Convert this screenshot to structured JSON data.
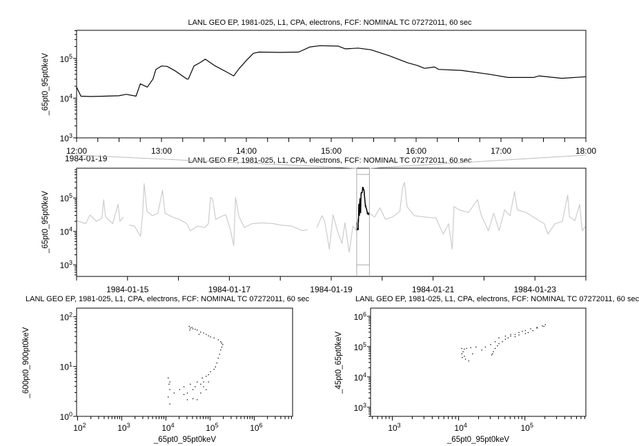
{
  "chart_data": [
    {
      "type": "line",
      "title": "LANL GEO EP, 1981-025, L1, CPA, electrons, FCF: NOMINAL TC 07272011, 60 sec",
      "ylabel": "_65pt0_95pt0keV",
      "xlabel": "",
      "date_label": "1984-01-19",
      "x_scale": "time",
      "y_scale": "log",
      "xlim": [
        "1984-01-19 12:00",
        "1984-01-19 18:00"
      ],
      "ylim": [
        1000,
        510000
      ],
      "x_tick_labels": [
        "12:00",
        "13:00",
        "14:00",
        "15:00",
        "16:00",
        "17:00",
        "18:00"
      ],
      "y_tick_labels": [
        "3",
        "4",
        "5"
      ],
      "series": [
        {
          "color": "#000000",
          "points": [
            [
              "1984-01-19 12:00",
              19000
            ],
            [
              "1984-01-19 12:03",
              11200
            ],
            [
              "1984-01-19 12:10",
              11000
            ],
            [
              "1984-01-19 12:20",
              11200
            ],
            [
              "1984-01-19 12:30",
              11500
            ],
            [
              "1984-01-19 12:35",
              12500
            ],
            [
              "1984-01-19 12:42",
              11200
            ],
            [
              "1984-01-19 12:45",
              22900
            ],
            [
              "1984-01-19 12:50",
              19000
            ],
            [
              "1984-01-19 12:54",
              30200
            ],
            [
              "1984-01-19 12:56",
              52500
            ],
            [
              "1984-01-19 13:00",
              64600
            ],
            [
              "1984-01-19 13:04",
              63000
            ],
            [
              "1984-01-19 13:10",
              47900
            ],
            [
              "1984-01-19 13:18",
              30200
            ],
            [
              "1984-01-19 13:19",
              30200
            ],
            [
              "1984-01-19 13:23",
              64600
            ],
            [
              "1984-01-19 13:27",
              77600
            ],
            [
              "1984-01-19 13:31",
              95500
            ],
            [
              "1984-01-19 13:38",
              64600
            ],
            [
              "1984-01-19 13:46",
              45700
            ],
            [
              "1984-01-19 13:51",
              36300
            ],
            [
              "1984-01-19 13:55",
              56200
            ],
            [
              "1984-01-19 14:00",
              89100
            ],
            [
              "1984-01-19 14:05",
              135000
            ],
            [
              "1984-01-19 14:09",
              145000
            ],
            [
              "1984-01-19 14:24",
              142000
            ],
            [
              "1984-01-19 14:37",
              145000
            ],
            [
              "1984-01-19 14:45",
              195000
            ],
            [
              "1984-01-19 14:52",
              209000
            ],
            [
              "1984-01-19 15:05",
              204000
            ],
            [
              "1984-01-19 15:10",
              174000
            ],
            [
              "1984-01-19 15:19",
              182000
            ],
            [
              "1984-01-19 15:28",
              165000
            ],
            [
              "1984-01-19 15:41",
              117000
            ],
            [
              "1984-01-19 15:54",
              77600
            ],
            [
              "1984-01-19 16:01",
              66100
            ],
            [
              "1984-01-19 16:06",
              56200
            ],
            [
              "1984-01-19 16:13",
              61000
            ],
            [
              "1984-01-19 16:16",
              53000
            ],
            [
              "1984-01-19 16:32",
              50100
            ],
            [
              "1984-01-19 16:52",
              39800
            ],
            [
              "1984-01-19 17:05",
              33100
            ],
            [
              "1984-01-19 17:23",
              33100
            ],
            [
              "1984-01-19 17:27",
              36300
            ],
            [
              "1984-01-19 17:43",
              31600
            ],
            [
              "1984-01-19 18:00",
              34700
            ]
          ]
        }
      ]
    },
    {
      "type": "line",
      "title": "LANL GEO EP, 1981-025, L1, CPA, electrons, FCF: NOMINAL TC 07272011, 60 sec",
      "ylabel": "_65pt0_95pt0keV",
      "xlabel": "",
      "x_scale": "time",
      "y_scale": "log",
      "xlim": [
        "1984-01-14 00:00",
        "1984-01-24 00:00"
      ],
      "ylim": [
        450,
        780000
      ],
      "x_tick_labels": [
        "1984-01-15",
        "1984-01-17",
        "1984-01-19",
        "1984-01-21",
        "1984-01-23"
      ],
      "highlight": {
        "xlim": [
          "1984-01-19 12:00",
          "1984-01-19 18:00"
        ],
        "ylim": [
          1000,
          510000
        ],
        "color": "#aaaaaa"
      },
      "series": [
        {
          "color": "#cccccc",
          "points": [
            [
              "1984-01-14 00:00",
              21000
            ],
            [
              "1984-01-14 04:15",
              17000
            ],
            [
              "1984-01-14 06:18",
              31000
            ],
            [
              "1984-01-14 09:22",
              20000
            ],
            [
              "1984-01-14 11:55",
              25000
            ],
            [
              "1984-01-14 12:46",
              89000
            ],
            [
              "1984-01-14 13:37",
              27000
            ],
            [
              "1984-01-14 17:01",
              17000
            ],
            [
              "1984-01-14 19:34",
              65000
            ],
            [
              "1984-01-14 20:25",
              20000
            ],
            [
              "1984-01-14 22:07",
              27000
            ],
            null,
            [
              "1984-01-15 00:41",
              15500
            ],
            [
              "1984-01-15 03:14",
              14500
            ],
            [
              "1984-01-15 06:08",
              7100
            ],
            [
              "1984-01-15 07:09",
              37000
            ],
            [
              "1984-01-15 07:50",
              270000
            ],
            [
              "1984-01-15 09:11",
              40000
            ],
            [
              "1984-01-15 11:44",
              29500
            ],
            [
              "1984-01-15 14:17",
              35000
            ],
            [
              "1984-01-15 16:30",
              170000
            ],
            [
              "1984-01-15 17:42",
              35000
            ],
            [
              "1984-01-15 21:06",
              27000
            ],
            [
              "1984-01-16 00:30",
              23000
            ],
            [
              "1984-01-16 03:54",
              17000
            ],
            [
              "1984-01-16 05:36",
              10500
            ],
            [
              "1984-01-16 09:00",
              14500
            ],
            [
              "1984-01-16 12:25",
              13000
            ],
            [
              "1984-01-16 14:07",
              17000
            ],
            [
              "1984-01-16 15:08",
              105000
            ],
            [
              "1984-01-16 16:10",
              89000
            ],
            [
              "1984-01-16 17:31",
              23000
            ],
            [
              "1984-01-16 20:56",
              29500
            ],
            [
              "1984-01-16 22:17",
              31500
            ],
            [
              "1984-01-17 00:20",
              12300
            ],
            [
              "1984-01-17 02:02",
              3700
            ],
            [
              "1984-01-17 02:53",
              105000
            ],
            [
              "1984-01-17 04:35",
              27000
            ],
            [
              "1984-01-17 07:08",
              13000
            ],
            [
              "1984-01-17 10:32",
              17000
            ],
            [
              "1984-01-17 15:39",
              18000
            ],
            [
              "1984-01-17 20:45",
              17000
            ],
            [
              "1984-01-18 00:10",
              15500
            ],
            [
              "1984-01-18 05:16",
              14500
            ],
            [
              "1984-01-18 10:22",
              10500
            ],
            [
              "1984-01-18 12:55",
              11400
            ],
            null,
            [
              "1984-01-18 17:10",
              13000
            ],
            [
              "1984-01-18 19:43",
              29500
            ],
            [
              "1984-01-18 20:55",
              20000
            ],
            [
              "1984-01-18 23:08",
              2950
            ],
            [
              "1984-01-19 00:50",
              31500
            ],
            [
              "1984-01-19 03:23",
              8300
            ],
            [
              "1984-01-19 05:05",
              4400
            ],
            [
              "1984-01-19 06:27",
              18000
            ],
            [
              "1984-01-19 08:30",
              2350
            ],
            [
              "1984-01-19 10:12",
              14500
            ],
            [
              "1984-01-19 12:00",
              10500
            ],
            null,
            [
              "1984-01-19 18:02",
              35000
            ],
            [
              "1984-01-19 20:25",
              27000
            ],
            [
              "1984-01-19 23:00",
              51000
            ],
            [
              "1984-01-20 01:31",
              23000
            ],
            [
              "1984-01-20 04:56",
              27000
            ],
            [
              "1984-01-20 08:20",
              40000
            ],
            [
              "1984-01-20 09:42",
              215000
            ],
            [
              "1984-01-20 10:33",
              295000
            ],
            [
              "1984-01-20 11:44",
              55000
            ],
            [
              "1984-01-20 15:08",
              29500
            ],
            [
              "1984-01-20 20:15",
              27000
            ],
            [
              "1984-01-21 01:21",
              25000
            ],
            [
              "1984-01-21 04:45",
              8300
            ],
            [
              "1984-01-21 07:18",
              17000
            ],
            [
              "1984-01-21 09:00",
              2950
            ],
            [
              "1984-01-21 09:51",
              55000
            ],
            [
              "1984-01-21 12:24",
              44000
            ],
            [
              "1984-01-21 16:40",
              37000
            ],
            [
              "1984-01-21 20:56",
              89000
            ],
            [
              "1984-01-21 22:38",
              31500
            ],
            [
              "1984-01-22 02:02",
              10500
            ],
            [
              "1984-01-22 04:35",
              35000
            ],
            [
              "1984-01-22 07:08",
              10500
            ],
            [
              "1984-01-22 09:41",
              44000
            ],
            [
              "1984-01-22 12:14",
              29500
            ],
            [
              "1984-01-22 14:27",
              156000
            ],
            [
              "1984-01-22 15:38",
              44000
            ],
            [
              "1984-01-22 19:53",
              37000
            ],
            [
              "1984-01-23 01:00",
              23000
            ],
            [
              "1984-01-23 04:24",
              17000
            ],
            [
              "1984-01-23 06:06",
              8300
            ],
            [
              "1984-01-23 09:30",
              17000
            ],
            [
              "1984-01-23 12:55",
              20000
            ],
            [
              "1984-01-23 15:27",
              123000
            ],
            [
              "1984-01-23 16:18",
              27000
            ],
            [
              "1984-01-23 18:52",
              21000
            ],
            [
              "1984-01-23 21:05",
              65000
            ],
            [
              "1984-01-23 22:16",
              10500
            ],
            [
              "1984-01-24 00:00",
              14500
            ]
          ]
        },
        {
          "color": "#000000",
          "same_as": "top_panel_series"
        }
      ]
    },
    {
      "type": "scatter",
      "title": "LANL GEO EP, 1981-025, L1, CPA, electrons, FCF: NOMINAL TC 07272011, 60 sec",
      "xlabel": "_65pt0_95pt0keV",
      "ylabel": "_600pt0_900pt0keV",
      "x_scale": "log",
      "y_scale": "log",
      "xlim": [
        95,
        7400000
      ],
      "ylim": [
        1,
        148
      ],
      "color": "#000000",
      "points": [
        [
          33000,
          65
        ],
        [
          35000,
          60
        ],
        [
          34000,
          55
        ],
        [
          38000,
          62
        ],
        [
          40000,
          58
        ],
        [
          45000,
          57
        ],
        [
          50000,
          55
        ],
        [
          60000,
          50
        ],
        [
          55000,
          45
        ],
        [
          70000,
          48
        ],
        [
          80000,
          45
        ],
        [
          90000,
          42
        ],
        [
          100000,
          40
        ],
        [
          120000,
          38
        ],
        [
          150000,
          35
        ],
        [
          170000,
          32
        ],
        [
          180000,
          30
        ],
        [
          190000,
          28
        ],
        [
          180000,
          25
        ],
        [
          170000,
          22
        ],
        [
          160000,
          18
        ],
        [
          150000,
          15
        ],
        [
          140000,
          12
        ],
        [
          130000,
          10
        ],
        [
          120000,
          9
        ],
        [
          100000,
          8
        ],
        [
          90000,
          7
        ],
        [
          80000,
          6.5
        ],
        [
          70000,
          5
        ],
        [
          60000,
          4.5
        ],
        [
          50000,
          5
        ],
        [
          45000,
          4
        ],
        [
          40000,
          3.5
        ],
        [
          35000,
          4.5
        ],
        [
          30000,
          3
        ],
        [
          25000,
          4
        ],
        [
          20000,
          3.5
        ],
        [
          15000,
          3
        ],
        [
          12000,
          5
        ],
        [
          11000,
          6
        ],
        [
          11500,
          4.5
        ],
        [
          12000,
          3.5
        ],
        [
          11000,
          2.5
        ],
        [
          12000,
          1.8
        ],
        [
          30000,
          2.2
        ],
        [
          50000,
          2.2
        ],
        [
          80000,
          3.5
        ],
        [
          60000,
          3
        ],
        [
          25000,
          2.8
        ],
        [
          40000,
          2.3
        ],
        [
          70000,
          4
        ],
        [
          90000,
          5
        ],
        [
          65000,
          6
        ]
      ]
    },
    {
      "type": "scatter",
      "title": "LANL GEO EP, 1981-025, L1, CPA, electrons, FCF: NOMINAL TC 07272011, 60 sec",
      "xlabel": "_65pt0_95pt0keV",
      "ylabel": "_45pt0_65pt0keV",
      "x_scale": "log",
      "y_scale": "log",
      "xlim": [
        470,
        830000
      ],
      "ylim": [
        500,
        1860000
      ],
      "color": "#000000",
      "points": [
        [
          11000,
          90000
        ],
        [
          12000,
          85000
        ],
        [
          11500,
          70000
        ],
        [
          11000,
          60000
        ],
        [
          12000,
          50000
        ],
        [
          12500,
          40000
        ],
        [
          14000,
          35000
        ],
        [
          11200,
          45000
        ],
        [
          13000,
          90000
        ],
        [
          15000,
          95000
        ],
        [
          18000,
          100000
        ],
        [
          16000,
          60000
        ],
        [
          22000,
          80000
        ],
        [
          31000,
          55000
        ],
        [
          32000,
          60000
        ],
        [
          33000,
          70000
        ],
        [
          35000,
          90000
        ],
        [
          38000,
          110000
        ],
        [
          40000,
          130000
        ],
        [
          45000,
          150000
        ],
        [
          50000,
          180000
        ],
        [
          55000,
          200000
        ],
        [
          60000,
          230000
        ],
        [
          70000,
          260000
        ],
        [
          80000,
          300000
        ],
        [
          90000,
          330000
        ],
        [
          100000,
          350000
        ],
        [
          120000,
          400000
        ],
        [
          150000,
          450000
        ],
        [
          180000,
          500000
        ],
        [
          200000,
          550000
        ],
        [
          190000,
          480000
        ],
        [
          150000,
          420000
        ],
        [
          110000,
          300000
        ],
        [
          80000,
          250000
        ],
        [
          60000,
          260000
        ],
        [
          50000,
          230000
        ],
        [
          40000,
          200000
        ],
        [
          35000,
          150000
        ],
        [
          30000,
          120000
        ],
        [
          25000,
          100000
        ],
        [
          70000,
          220000
        ],
        [
          100000,
          280000
        ],
        [
          130000,
          350000
        ]
      ]
    }
  ]
}
